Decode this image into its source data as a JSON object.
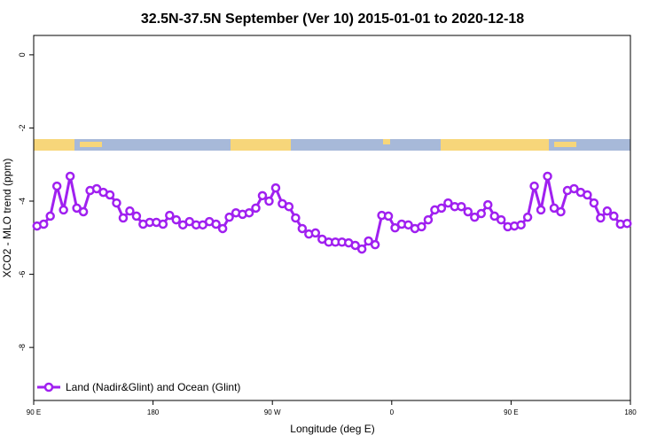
{
  "chart_data": {
    "type": "line",
    "title": "32.5N-37.5N September (Ver 10)   2015-01-01 to 2020-12-18",
    "x_label": "Longitude (deg E)",
    "y_label": "XCO2 - MLO trend (ppm)",
    "xlim": [
      90,
      540
    ],
    "xticks": [
      {
        "value": 90,
        "label": "90 E"
      },
      {
        "value": 180,
        "label": "180"
      },
      {
        "value": 270,
        "label": "90 W"
      },
      {
        "value": 360,
        "label": "0"
      },
      {
        "value": 450,
        "label": "90 E"
      },
      {
        "value": 540,
        "label": "180"
      }
    ],
    "ylim": [
      -9.45,
      0.53
    ],
    "yticks": [
      0,
      -2,
      -4,
      -6,
      -8
    ],
    "x": [
      92.5,
      97.5,
      102.5,
      107.5,
      112.5,
      117.5,
      122.5,
      127.5,
      132.5,
      137.5,
      142.5,
      147.5,
      152.5,
      157.5,
      162.5,
      167.5,
      172.5,
      177.5,
      182.5,
      187.5,
      192.5,
      197.5,
      202.5,
      207.5,
      212.5,
      217.5,
      222.5,
      227.5,
      232.5,
      237.5,
      242.5,
      247.5,
      252.5,
      257.5,
      262.5,
      267.5,
      272.5,
      277.5,
      282.5,
      287.5,
      292.5,
      297.5,
      302.5,
      307.5,
      312.5,
      317.5,
      322.5,
      327.5,
      332.5,
      337.5,
      342.5,
      347.5,
      352.5,
      357.5,
      362.5,
      367.5,
      372.5,
      377.5,
      382.5,
      387.5,
      392.5,
      397.5,
      402.5,
      407.5,
      412.5,
      417.5,
      422.5,
      427.5,
      432.5,
      437.5,
      442.5,
      447.5,
      452.5,
      457.5,
      462.5,
      467.5,
      472.5,
      477.5,
      482.5,
      487.5,
      492.5,
      497.5,
      502.5,
      507.5,
      512.5,
      517.5,
      522.5,
      527.5,
      532.5,
      537.5
    ],
    "series": [
      {
        "name": "Land (Nadir&Glint) and Ocean (Glint)",
        "color": "#a020f0",
        "values": [
          -4.68,
          -4.63,
          -4.41,
          -3.59,
          -4.24,
          -3.32,
          -4.19,
          -4.29,
          -3.71,
          -3.66,
          -3.76,
          -3.83,
          -4.05,
          -4.46,
          -4.27,
          -4.41,
          -4.63,
          -4.58,
          -4.58,
          -4.63,
          -4.39,
          -4.51,
          -4.65,
          -4.56,
          -4.65,
          -4.65,
          -4.56,
          -4.63,
          -4.75,
          -4.44,
          -4.32,
          -4.36,
          -4.32,
          -4.19,
          -3.85,
          -4.0,
          -3.64,
          -4.07,
          -4.15,
          -4.46,
          -4.75,
          -4.9,
          -4.87,
          -5.04,
          -5.12,
          -5.12,
          -5.12,
          -5.14,
          -5.21,
          -5.31,
          -5.09,
          -5.19,
          -4.39,
          -4.41,
          -4.73,
          -4.63,
          -4.65,
          -4.75,
          -4.7,
          -4.51,
          -4.24,
          -4.19,
          -4.05,
          -4.15,
          -4.15,
          -4.29,
          -4.44,
          -4.34,
          -4.1,
          -4.41,
          -4.51,
          -4.7,
          -4.68,
          -4.65,
          -4.44,
          -3.59,
          -4.24,
          -3.32,
          -4.19,
          -4.29,
          -3.71,
          -3.66,
          -3.76,
          -3.83,
          -4.05,
          -4.46,
          -4.27,
          -4.41,
          -4.63,
          -4.61
        ]
      }
    ]
  }
}
